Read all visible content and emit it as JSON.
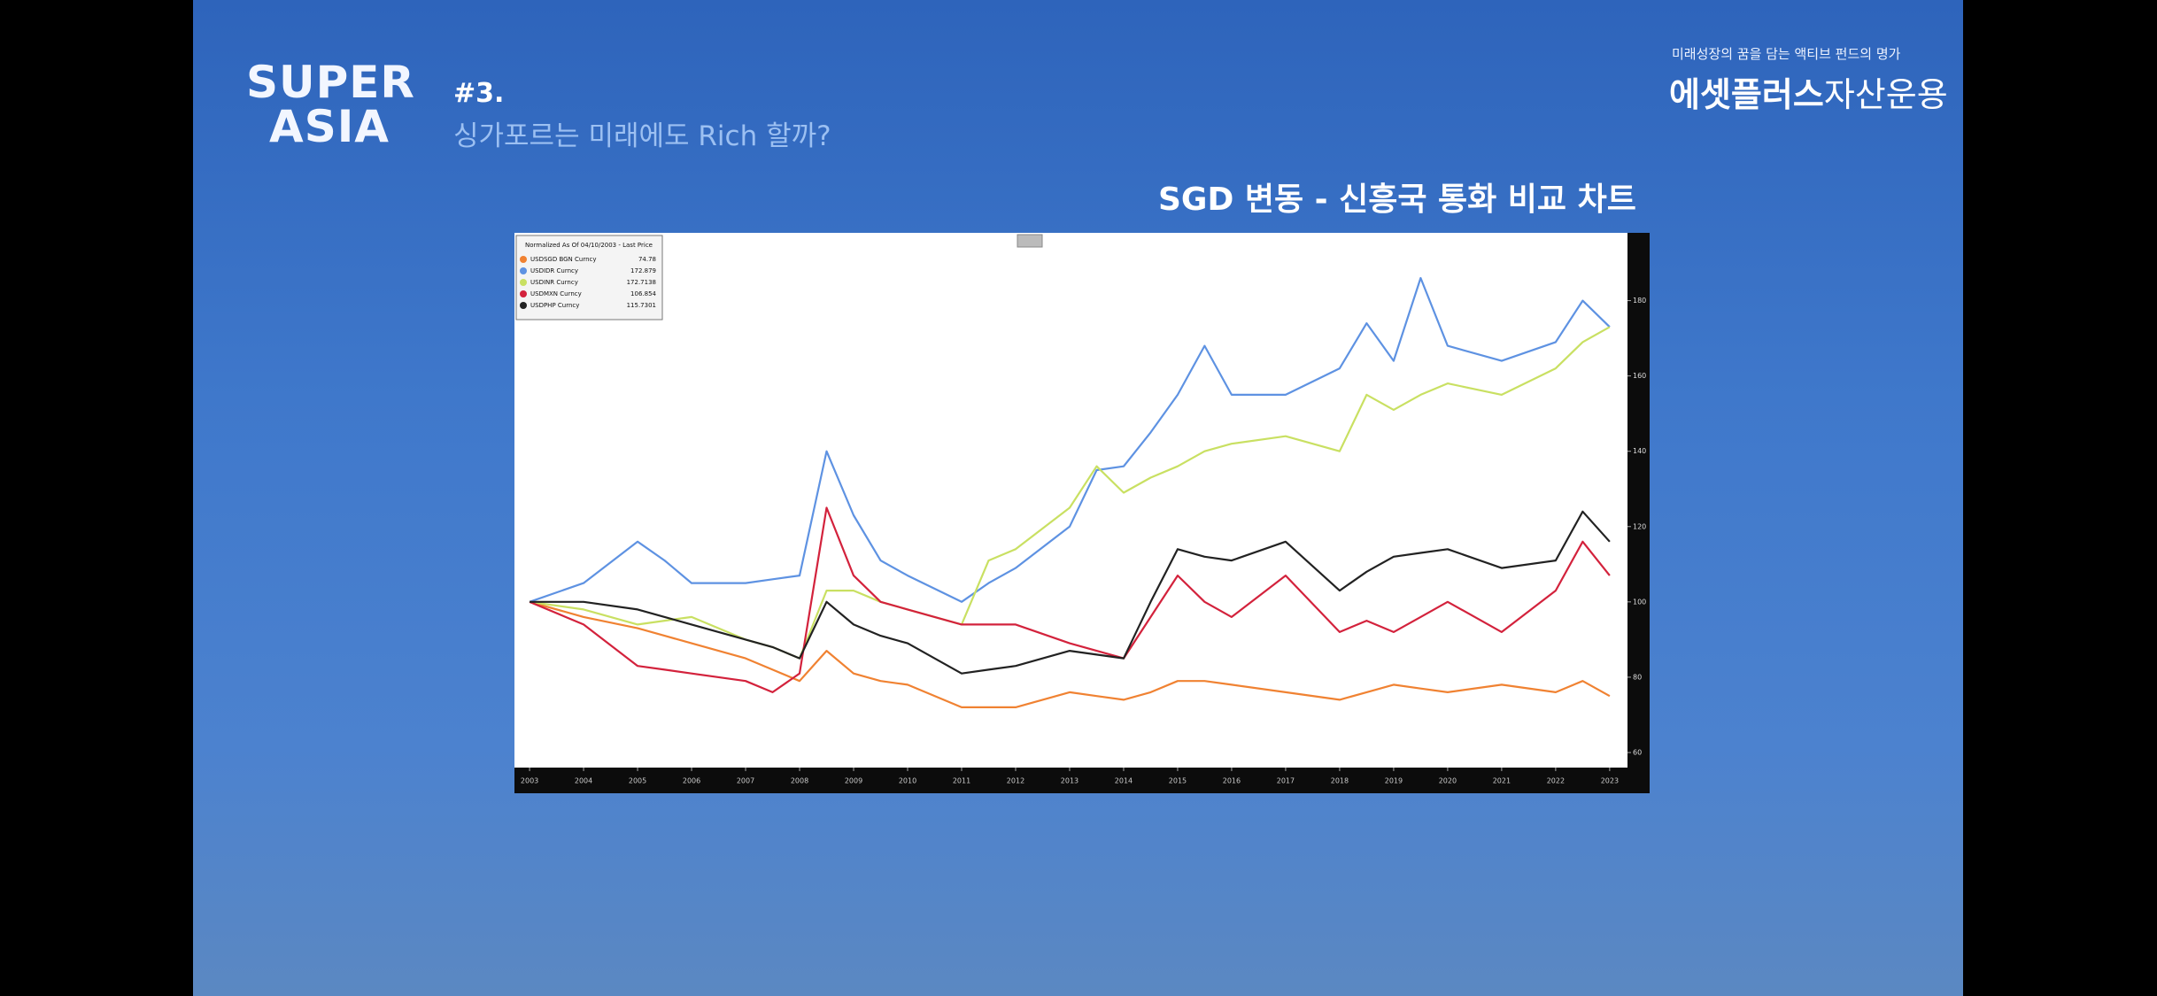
{
  "header": {
    "logo_line1": "SUPER",
    "logo_line2": "ASIA",
    "episode": "#3.",
    "subtitle": "싱가포르는 미래에도 Rich 할까?",
    "tagline": "미래성장의 꿈을 담는 액티브 펀드의 명가",
    "brand_bold": "에셋플러스",
    "brand_regular": "자산운용"
  },
  "chart_data": {
    "type": "line",
    "title": "SGD 변동 - 신흥국 통화 비교 차트",
    "legend_title": "Normalized As Of 04/10/2003 - Last Price",
    "x": [
      2003,
      2004,
      2005,
      2005.5,
      2006,
      2007,
      2007.5,
      2008,
      2008.5,
      2009,
      2009.5,
      2010,
      2011,
      2011.5,
      2012,
      2013,
      2013.5,
      2014,
      2014.5,
      2015,
      2015.5,
      2016,
      2017,
      2018,
      2018.5,
      2019,
      2019.5,
      2020,
      2021,
      2022,
      2022.5,
      2023
    ],
    "xlim": [
      2002.72,
      2023.33
    ],
    "xticks": [
      2003,
      2004,
      2005,
      2006,
      2007,
      2008,
      2009,
      2010,
      2011,
      2012,
      2013,
      2014,
      2015,
      2016,
      2017,
      2018,
      2019,
      2020,
      2021,
      2022,
      2023
    ],
    "ylim": [
      56,
      198
    ],
    "yticks": [
      60,
      80,
      100,
      120,
      140,
      160,
      180
    ],
    "series": [
      {
        "name": "USDSGD BGN Curncy",
        "last_price": "74.78",
        "color": "#f08232",
        "values": [
          100,
          96,
          93,
          91,
          89,
          85,
          82,
          79,
          87,
          81,
          79,
          78,
          72,
          72,
          72,
          76,
          75,
          74,
          76,
          79,
          79,
          78,
          76,
          74,
          76,
          78,
          77,
          76,
          78,
          76,
          79,
          75
        ]
      },
      {
        "name": "USDIDR Curncy",
        "last_price": "172.879",
        "color": "#5e92e2",
        "values": [
          100,
          105,
          116,
          111,
          105,
          105,
          106,
          107,
          140,
          123,
          111,
          107,
          100,
          105,
          109,
          120,
          135,
          136,
          145,
          155,
          168,
          155,
          155,
          162,
          174,
          164,
          186,
          168,
          164,
          169,
          180,
          173
        ]
      },
      {
        "name": "USDINR Curncy",
        "last_price": "172.7138",
        "color": "#c9e062",
        "values": [
          100,
          98,
          94,
          95,
          96,
          90,
          88,
          85,
          103,
          103,
          100,
          98,
          94,
          111,
          114,
          125,
          136,
          129,
          133,
          136,
          140,
          142,
          144,
          140,
          155,
          151,
          155,
          158,
          155,
          162,
          169,
          173
        ]
      },
      {
        "name": "USDMXN Curncy",
        "last_price": "106.854",
        "color": "#d3223c",
        "values": [
          100,
          94,
          83,
          82,
          81,
          79,
          76,
          81,
          125,
          107,
          100,
          98,
          94,
          94,
          94,
          89,
          87,
          85,
          96,
          107,
          100,
          96,
          107,
          92,
          95,
          92,
          96,
          100,
          92,
          103,
          116,
          107
        ]
      },
      {
        "name": "USDPHP Curncy",
        "last_price": "115.7301",
        "color": "#222222",
        "values": [
          100,
          100,
          98,
          96,
          94,
          90,
          88,
          85,
          100,
          94,
          91,
          89,
          81,
          82,
          83,
          87,
          86,
          85,
          100,
          114,
          112,
          111,
          116,
          103,
          108,
          112,
          113,
          114,
          109,
          111,
          124,
          116
        ]
      }
    ]
  }
}
